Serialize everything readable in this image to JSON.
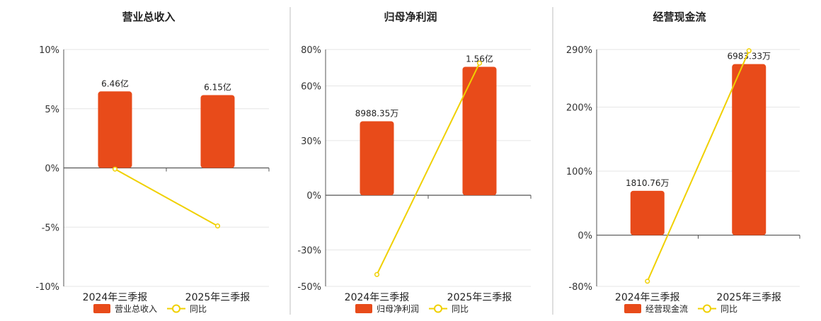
{
  "accent": "#E84B1A",
  "line_color": "#F0D000",
  "chart_data": [
    {
      "type": "bar",
      "title": "营业总收入",
      "categories": [
        "2024年三季报",
        "2025年三季报"
      ],
      "series": [
        {
          "name": "营业总收入",
          "kind": "bar",
          "axis": "hidden",
          "values": [
            6.46,
            6.15
          ],
          "labels": [
            "6.46亿",
            "6.15亿"
          ]
        },
        {
          "name": "同比",
          "kind": "line",
          "axis": "left",
          "values": [
            -0.1,
            -4.9
          ]
        }
      ],
      "yticks": [
        "10%",
        "5%",
        "0%",
        "-5%",
        "-10%"
      ],
      "ylim": [
        -10,
        10
      ],
      "bar_ylim": [
        -10,
        10
      ],
      "grid": true,
      "legend": "bottom"
    },
    {
      "type": "bar",
      "title": "归母净利润",
      "categories": [
        "2024年三季报",
        "2025年三季报"
      ],
      "series": [
        {
          "name": "归母净利润",
          "kind": "bar",
          "axis": "hidden",
          "values": [
            0.899,
            1.56
          ],
          "labels": [
            "8988.35万",
            "1.56亿"
          ]
        },
        {
          "name": "同比",
          "kind": "line",
          "axis": "left",
          "values": [
            -43.5,
            72.5
          ]
        }
      ],
      "yticks": [
        "80%",
        "60%",
        "30%",
        "0%",
        "-30%",
        "-50%"
      ],
      "ylim": [
        -50,
        80
      ],
      "bar_ylim": [
        -1.106,
        1.77
      ],
      "grid": true,
      "legend": "bottom"
    },
    {
      "type": "bar",
      "title": "经营现金流",
      "categories": [
        "2024年三季报",
        "2025年三季报"
      ],
      "series": [
        {
          "name": "经营现金流",
          "kind": "bar",
          "axis": "hidden",
          "values": [
            0.1811,
            0.6983
          ],
          "labels": [
            "1810.76万",
            "6983.33万"
          ]
        },
        {
          "name": "同比",
          "kind": "line",
          "axis": "left",
          "values": [
            -72,
            288
          ]
        }
      ],
      "yticks": [
        "290%",
        "200%",
        "100%",
        "0%",
        "-80%"
      ],
      "ylim": [
        -80,
        290
      ],
      "bar_ylim": [
        -0.209,
        0.758
      ],
      "grid": true,
      "legend": "bottom"
    }
  ]
}
